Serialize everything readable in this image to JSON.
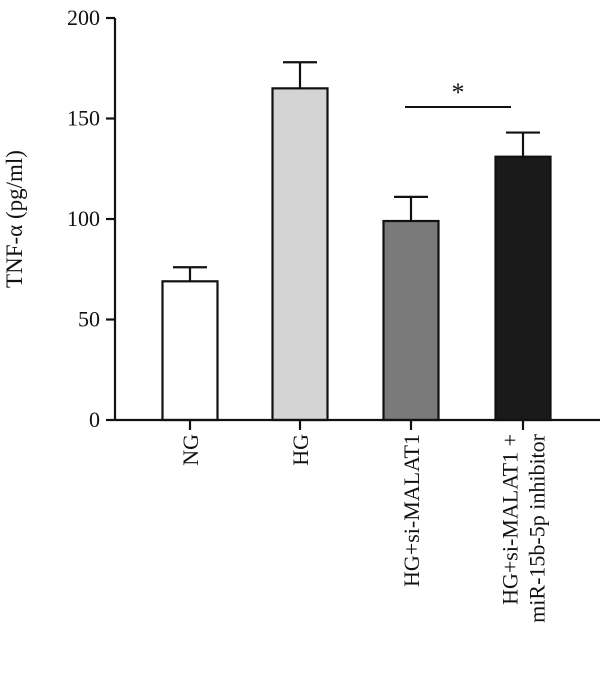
{
  "chart_data": {
    "type": "bar",
    "ylabel": "TNF-α (pg/ml)",
    "ylim": [
      0,
      200
    ],
    "yticks": [
      0,
      50,
      100,
      150,
      200
    ],
    "grid": false,
    "categories": [
      {
        "lines": [
          "NG"
        ]
      },
      {
        "lines": [
          "HG"
        ]
      },
      {
        "lines": [
          "HG+si-MALAT1"
        ]
      },
      {
        "lines": [
          "HG+si-MALAT1 +",
          "miR-15b-5p inhibitor"
        ]
      }
    ],
    "values": [
      69,
      165,
      99,
      131
    ],
    "errors": [
      7,
      13,
      12,
      12
    ],
    "colors": [
      "#ffffff",
      "#d4d4d4",
      "#7a7a7a",
      "#1a1a1a"
    ],
    "significance": [
      {
        "from": 2,
        "to": 3,
        "label": "*"
      }
    ]
  }
}
